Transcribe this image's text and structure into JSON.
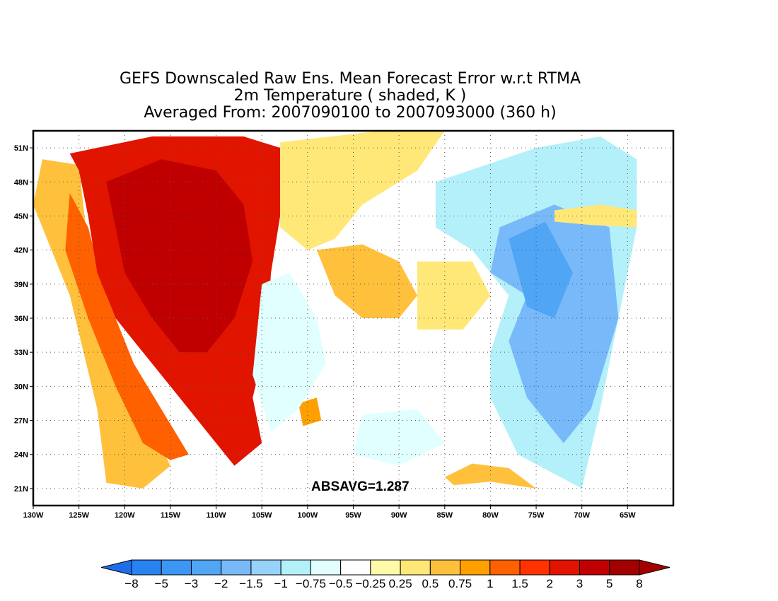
{
  "title": {
    "line1": "GEFS Downscaled Raw Ens. Mean Forecast Error w.r.t RTMA",
    "line2": "2m Temperature ( shaded, K )",
    "line3": "Averaged From: 2007090100 to 2007093000 (360 h)"
  },
  "annotation": "ABSAVG=1.287",
  "map": {
    "region": "Continental United States",
    "variable": "2m temperature forecast error",
    "units": "K",
    "lon_range": [
      -130,
      -60
    ],
    "lat_range": [
      19.5,
      52.5
    ],
    "grid": true,
    "x_ticks": [
      {
        "lon": -130,
        "label": "130W"
      },
      {
        "lon": -125,
        "label": "125W"
      },
      {
        "lon": -120,
        "label": "120W"
      },
      {
        "lon": -115,
        "label": "115W"
      },
      {
        "lon": -110,
        "label": "110W"
      },
      {
        "lon": -105,
        "label": "105W"
      },
      {
        "lon": -100,
        "label": "100W"
      },
      {
        "lon": -95,
        "label": "95W"
      },
      {
        "lon": -90,
        "label": "90W"
      },
      {
        "lon": -85,
        "label": "85W"
      },
      {
        "lon": -80,
        "label": "80W"
      },
      {
        "lon": -75,
        "label": "75W"
      },
      {
        "lon": -70,
        "label": "70W"
      },
      {
        "lon": -65,
        "label": "65W"
      }
    ],
    "y_ticks": [
      {
        "lat": 21,
        "label": "21N"
      },
      {
        "lat": 24,
        "label": "24N"
      },
      {
        "lat": 27,
        "label": "27N"
      },
      {
        "lat": 30,
        "label": "30N"
      },
      {
        "lat": 33,
        "label": "33N"
      },
      {
        "lat": 36,
        "label": "36N"
      },
      {
        "lat": 39,
        "label": "39N"
      },
      {
        "lat": 42,
        "label": "42N"
      },
      {
        "lat": 45,
        "label": "45N"
      },
      {
        "lat": 48,
        "label": "48N"
      },
      {
        "lat": 51,
        "label": "51N"
      }
    ],
    "shaded_regions": [
      {
        "name": "pacific-coast-warm",
        "level": 0.75,
        "polygon": [
          [
            -129,
            50
          ],
          [
            -125,
            49.5
          ],
          [
            -124,
            42
          ],
          [
            -122,
            35
          ],
          [
            -118,
            28
          ],
          [
            -115,
            23
          ],
          [
            -118,
            21
          ],
          [
            -122,
            21.5
          ],
          [
            -123,
            28
          ],
          [
            -126,
            38
          ],
          [
            -130,
            46
          ]
        ]
      },
      {
        "name": "west-coast-warmer",
        "level": 1.5,
        "polygon": [
          [
            -126,
            47
          ],
          [
            -124,
            44
          ],
          [
            -122,
            38
          ],
          [
            -119,
            32
          ],
          [
            -116,
            28
          ],
          [
            -113,
            24
          ],
          [
            -115,
            23.5
          ],
          [
            -118,
            25
          ],
          [
            -121,
            30
          ],
          [
            -124,
            36
          ],
          [
            -126.5,
            42
          ]
        ]
      },
      {
        "name": "western-interior-warm",
        "level": 3,
        "polygon": [
          [
            -126,
            50.5
          ],
          [
            -117,
            52
          ],
          [
            -107,
            52
          ],
          [
            -103,
            51
          ],
          [
            -103,
            45
          ],
          [
            -104,
            40
          ],
          [
            -104.5,
            34
          ],
          [
            -106,
            29
          ],
          [
            -105,
            25
          ],
          [
            -108,
            23
          ],
          [
            -111,
            26
          ],
          [
            -114,
            29
          ],
          [
            -118,
            33
          ],
          [
            -121,
            36
          ],
          [
            -123,
            40
          ],
          [
            -124,
            45
          ],
          [
            -125,
            49
          ]
        ]
      },
      {
        "name": "great-basin-hot",
        "level": 5,
        "polygon": [
          [
            -122,
            48
          ],
          [
            -116,
            50
          ],
          [
            -110,
            49
          ],
          [
            -107,
            46
          ],
          [
            -106,
            41
          ],
          [
            -108,
            36
          ],
          [
            -111,
            33
          ],
          [
            -114,
            33
          ],
          [
            -117,
            36
          ],
          [
            -120,
            40
          ],
          [
            -121,
            44
          ]
        ]
      },
      {
        "name": "central-plains-warm",
        "level": 0.5,
        "polygon": [
          [
            -103,
            51.5
          ],
          [
            -92,
            52.5
          ],
          [
            -85,
            52.5
          ],
          [
            -88,
            49
          ],
          [
            -94,
            46
          ],
          [
            -97,
            43
          ],
          [
            -100,
            42
          ],
          [
            -103,
            44
          ]
        ]
      },
      {
        "name": "midwest-warm-patch",
        "level": 0.75,
        "polygon": [
          [
            -99,
            42
          ],
          [
            -94,
            42.5
          ],
          [
            -90,
            41
          ],
          [
            -88,
            38
          ],
          [
            -90,
            36
          ],
          [
            -94,
            36
          ],
          [
            -97,
            38
          ]
        ]
      },
      {
        "name": "ohio-valley-warm",
        "level": 0.5,
        "polygon": [
          [
            -88,
            41
          ],
          [
            -82,
            41
          ],
          [
            -80,
            38
          ],
          [
            -83,
            35
          ],
          [
            -88,
            35
          ]
        ]
      },
      {
        "name": "texas-warm-spot",
        "level": 1,
        "polygon": [
          [
            -101,
            28.5
          ],
          [
            -99,
            29
          ],
          [
            -98.5,
            27
          ],
          [
            -100.5,
            26.5
          ]
        ]
      },
      {
        "name": "plains-cool",
        "level": -0.5,
        "polygon": [
          [
            -105,
            39
          ],
          [
            -102,
            40
          ],
          [
            -99,
            36
          ],
          [
            -98,
            32
          ],
          [
            -101,
            28
          ],
          [
            -104,
            26
          ],
          [
            -106,
            31
          ]
        ]
      },
      {
        "name": "gulf-cool",
        "level": -0.25,
        "polygon": [
          [
            -97,
            30
          ],
          [
            -88,
            30.5
          ],
          [
            -82,
            29
          ],
          [
            -80,
            25
          ],
          [
            -85,
            22
          ],
          [
            -93,
            22
          ],
          [
            -97,
            25
          ]
        ]
      },
      {
        "name": "gulf-cooler",
        "level": -0.5,
        "polygon": [
          [
            -94,
            27.5
          ],
          [
            -88,
            28
          ],
          [
            -85,
            25
          ],
          [
            -90,
            23
          ],
          [
            -95,
            24
          ]
        ]
      },
      {
        "name": "east-cool",
        "level": -0.75,
        "polygon": [
          [
            -86,
            48
          ],
          [
            -75,
            51
          ],
          [
            -68,
            52
          ],
          [
            -64,
            50
          ],
          [
            -64,
            44
          ],
          [
            -66,
            36
          ],
          [
            -68,
            28
          ],
          [
            -70,
            21
          ],
          [
            -77,
            24
          ],
          [
            -80,
            29
          ],
          [
            -80,
            33
          ],
          [
            -78,
            38
          ],
          [
            -82,
            42
          ],
          [
            -86,
            44
          ]
        ]
      },
      {
        "name": "atlantic-cooler",
        "level": -1.5,
        "polygon": [
          [
            -79,
            44
          ],
          [
            -73,
            46
          ],
          [
            -67,
            44
          ],
          [
            -66,
            36
          ],
          [
            -69,
            28
          ],
          [
            -72,
            25
          ],
          [
            -76,
            29
          ],
          [
            -78,
            34
          ],
          [
            -76,
            38
          ],
          [
            -80,
            40
          ]
        ]
      },
      {
        "name": "east-coast-cold",
        "level": -2,
        "polygon": [
          [
            -78,
            43
          ],
          [
            -74,
            44.5
          ],
          [
            -71,
            40
          ],
          [
            -73,
            36
          ],
          [
            -76,
            37
          ],
          [
            -77,
            40
          ]
        ]
      },
      {
        "name": "northeast-warm-streak",
        "level": 0.5,
        "polygon": [
          [
            -73,
            45.5
          ],
          [
            -68,
            46
          ],
          [
            -64,
            45.5
          ],
          [
            -64,
            44
          ],
          [
            -69,
            44.2
          ],
          [
            -73,
            44.5
          ]
        ]
      },
      {
        "name": "cuba-warm",
        "level": 0.75,
        "polygon": [
          [
            -85,
            22
          ],
          [
            -82,
            23.2
          ],
          [
            -78,
            22.8
          ],
          [
            -75,
            21
          ],
          [
            -80,
            21.6
          ],
          [
            -84,
            21.3
          ]
        ]
      }
    ]
  },
  "colorbar": {
    "levels": [
      "-8",
      "-5",
      "-3",
      "-2",
      "-1.5",
      "-1",
      "-0.75",
      "-0.5",
      "-0.25",
      "0.25",
      "0.5",
      "0.75",
      "1",
      "1.5",
      "2",
      "3",
      "5",
      "8"
    ],
    "colors": [
      "#1e6eeb",
      "#2882f0",
      "#3c96f5",
      "#50a5f5",
      "#78b9fa",
      "#96d2fa",
      "#b4f0fa",
      "#e1ffff",
      "#ffffff",
      "#fffaaa",
      "#ffe878",
      "#ffc03c",
      "#ffa000",
      "#ff6000",
      "#ff3200",
      "#e11400",
      "#c00000",
      "#a50000"
    ]
  }
}
